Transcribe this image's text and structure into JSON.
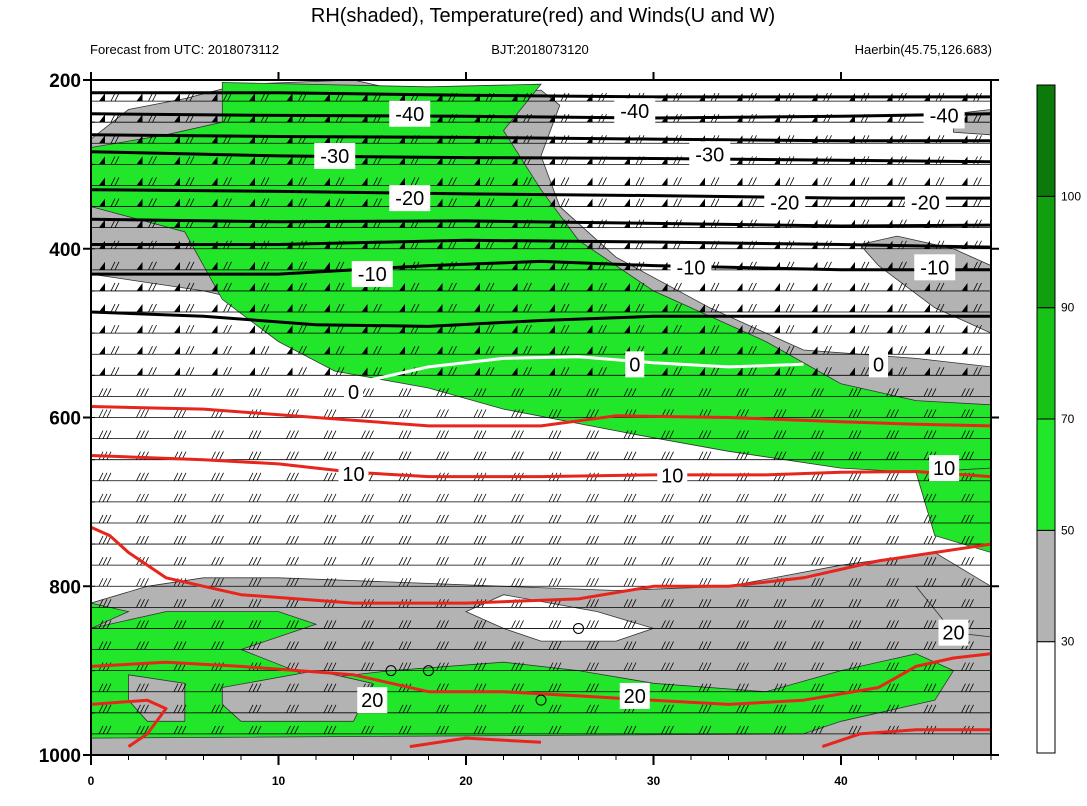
{
  "chart_data": {
    "type": "contour",
    "title": "RH(shaded), Temperature(red) and Winds(U and W)",
    "subtitle_left": "Forecast from UTC: 2018073112",
    "subtitle_center": "BJT:2018073120",
    "subtitle_right": "Haerbin(45.75,126.683)",
    "xlim": [
      0,
      48
    ],
    "ylim": [
      200,
      1000
    ],
    "y_reversed": true,
    "x_ticks": [
      0,
      10,
      20,
      30,
      40
    ],
    "y_ticks": [
      200,
      400,
      600,
      800,
      1000
    ],
    "wind_levels": [
      225,
      250,
      275,
      300,
      325,
      350,
      375,
      400,
      425,
      450,
      475,
      500,
      525,
      550,
      575,
      600,
      625,
      650,
      675,
      700,
      725,
      750,
      775,
      800,
      825,
      850,
      875,
      900,
      925,
      950,
      975
    ],
    "wind_times": [
      0,
      2,
      4,
      6,
      8,
      10,
      12,
      14,
      16,
      18,
      20,
      22,
      24,
      26,
      28,
      30,
      32,
      34,
      36,
      38,
      40,
      42,
      44,
      46
    ],
    "colorbar": {
      "levels": [
        30,
        50,
        70,
        90,
        100
      ],
      "colors": [
        "#ffffff",
        "#b3b3b3",
        "#22e62a",
        "#17c317",
        "#0f9f0f",
        "#0b7a0b"
      ]
    },
    "rh_regions": [
      {
        "level": 30,
        "color": "#b3b3b3",
        "points": [
          [
            0,
            270
          ],
          [
            2,
            235
          ],
          [
            5,
            222
          ],
          [
            8,
            205
          ],
          [
            14,
            200
          ],
          [
            18,
            220
          ],
          [
            24,
            212
          ],
          [
            25,
            230
          ],
          [
            24,
            290
          ],
          [
            25,
            350
          ],
          [
            28,
            410
          ],
          [
            33,
            470
          ],
          [
            38,
            520
          ],
          [
            44,
            530
          ],
          [
            48,
            540
          ],
          [
            48,
            600
          ],
          [
            42,
            610
          ],
          [
            33,
            620
          ],
          [
            24,
            560
          ],
          [
            17,
            510
          ],
          [
            12,
            480
          ],
          [
            6,
            450
          ],
          [
            0,
            430
          ]
        ]
      },
      {
        "level": 30,
        "color": "#b3b3b3",
        "points": [
          [
            41,
            395
          ],
          [
            43,
            385
          ],
          [
            46,
            400
          ],
          [
            48,
            420
          ],
          [
            48,
            500
          ],
          [
            45,
            470
          ],
          [
            42,
            420
          ]
        ]
      },
      {
        "level": 30,
        "color": "#b3b3b3",
        "points": [
          [
            46,
            240
          ],
          [
            48,
            235
          ],
          [
            48,
            265
          ],
          [
            46,
            262
          ]
        ]
      },
      {
        "level": 50,
        "color": "#22e62a",
        "points": [
          [
            7,
            203
          ],
          [
            18,
            208
          ],
          [
            24,
            205
          ],
          [
            22,
            260
          ],
          [
            24,
            330
          ],
          [
            26,
            390
          ],
          [
            30,
            450
          ],
          [
            36,
            510
          ],
          [
            40,
            560
          ],
          [
            44,
            580
          ],
          [
            48,
            585
          ],
          [
            48,
            660
          ],
          [
            44,
            665
          ],
          [
            40,
            660
          ],
          [
            34,
            640
          ],
          [
            29,
            620
          ],
          [
            22,
            590
          ],
          [
            18,
            565
          ],
          [
            13,
            545
          ],
          [
            10,
            510
          ],
          [
            7,
            460
          ],
          [
            5,
            380
          ],
          [
            0,
            350
          ],
          [
            0,
            280
          ],
          [
            4,
            265
          ],
          [
            7,
            250
          ]
        ]
      },
      {
        "level": 50,
        "color": "#22e62a",
        "points": [
          [
            44,
            665
          ],
          [
            48,
            660
          ],
          [
            48,
            760
          ],
          [
            45,
            740
          ]
        ]
      },
      {
        "level": 30,
        "color": "#b3b3b3",
        "points": [
          [
            0,
            820
          ],
          [
            3,
            800
          ],
          [
            6,
            790
          ],
          [
            10,
            790
          ],
          [
            16,
            795
          ],
          [
            22,
            800
          ],
          [
            28,
            805
          ],
          [
            34,
            800
          ],
          [
            40,
            775
          ],
          [
            45,
            760
          ],
          [
            48,
            800
          ],
          [
            48,
            1000
          ],
          [
            0,
            1000
          ]
        ]
      },
      {
        "level": 30,
        "color": "#b3b3b3",
        "points": [
          [
            44,
            800
          ],
          [
            48,
            800
          ],
          [
            48,
            860
          ],
          [
            46,
            855
          ]
        ]
      },
      {
        "level": 50,
        "color": "#22e62a",
        "points": [
          [
            0,
            850
          ],
          [
            4,
            830
          ],
          [
            10,
            830
          ],
          [
            12,
            845
          ],
          [
            8,
            875
          ],
          [
            12,
            910
          ],
          [
            16,
            900
          ],
          [
            22,
            890
          ],
          [
            26,
            900
          ],
          [
            30,
            915
          ],
          [
            36,
            925
          ],
          [
            40,
            900
          ],
          [
            44,
            880
          ],
          [
            46,
            900
          ],
          [
            45,
            935
          ],
          [
            40,
            960
          ],
          [
            38,
            975
          ],
          [
            0,
            980
          ]
        ]
      },
      {
        "level": 50,
        "color": "#22e62a",
        "points": [
          [
            0,
            850
          ],
          [
            2,
            830
          ],
          [
            0,
            820
          ]
        ]
      },
      {
        "level": 30,
        "color": "#ffffff",
        "points": [
          [
            22,
            810
          ],
          [
            27,
            830
          ],
          [
            30,
            850
          ],
          [
            28,
            865
          ],
          [
            24,
            865
          ],
          [
            22,
            850
          ],
          [
            20,
            830
          ]
        ]
      }
    ],
    "rh_islands": [
      {
        "color": "#b3b3b3",
        "points": [
          [
            2,
            905
          ],
          [
            5,
            915
          ],
          [
            5,
            960
          ],
          [
            3,
            960
          ],
          [
            2,
            935
          ]
        ]
      },
      {
        "color": "#b3b3b3",
        "points": [
          [
            7,
            920
          ],
          [
            12,
            900
          ],
          [
            15,
            915
          ],
          [
            14,
            960
          ],
          [
            8,
            960
          ],
          [
            7,
            940
          ]
        ]
      }
    ],
    "temperature_red": [
      {
        "label": "10",
        "points": [
          [
            0,
            645
          ],
          [
            6,
            650
          ],
          [
            10,
            655
          ],
          [
            14,
            665
          ],
          [
            18,
            670
          ],
          [
            24,
            670
          ],
          [
            30,
            668
          ],
          [
            36,
            668
          ],
          [
            40,
            665
          ],
          [
            44,
            664
          ],
          [
            48,
            670
          ]
        ]
      },
      {
        "label": "",
        "points": [
          [
            0,
            587
          ],
          [
            6,
            590
          ],
          [
            12,
            600
          ],
          [
            18,
            610
          ],
          [
            24,
            610
          ],
          [
            28,
            598
          ],
          [
            34,
            600
          ],
          [
            40,
            605
          ],
          [
            44,
            608
          ],
          [
            48,
            610
          ]
        ]
      },
      {
        "label": "",
        "points": [
          [
            0,
            730
          ],
          [
            1,
            740
          ],
          [
            2,
            760
          ],
          [
            4,
            790
          ],
          [
            8,
            810
          ],
          [
            14,
            820
          ],
          [
            20,
            820
          ],
          [
            26,
            815
          ],
          [
            30,
            800
          ],
          [
            34,
            800
          ],
          [
            38,
            790
          ],
          [
            42,
            770
          ],
          [
            48,
            750
          ]
        ]
      },
      {
        "label": "20",
        "points": [
          [
            0,
            895
          ],
          [
            4,
            890
          ],
          [
            8,
            895
          ],
          [
            14,
            905
          ],
          [
            18,
            925
          ],
          [
            22,
            925
          ],
          [
            26,
            930
          ],
          [
            30,
            935
          ],
          [
            34,
            940
          ],
          [
            38,
            935
          ],
          [
            42,
            920
          ],
          [
            44,
            895
          ],
          [
            46,
            885
          ],
          [
            48,
            880
          ]
        ]
      },
      {
        "label": "",
        "points": [
          [
            0,
            940
          ],
          [
            3,
            935
          ],
          [
            4,
            945
          ],
          [
            3,
            975
          ],
          [
            2,
            990
          ]
        ]
      },
      {
        "label": "",
        "points": [
          [
            17,
            990
          ],
          [
            20,
            980
          ],
          [
            24,
            985
          ]
        ]
      },
      {
        "label": "",
        "points": [
          [
            39,
            990
          ],
          [
            41,
            975
          ],
          [
            44,
            970
          ],
          [
            48,
            970
          ]
        ]
      }
    ],
    "temperature_black": [
      {
        "label": "-40",
        "points": [
          [
            0,
            215
          ],
          [
            10,
            215
          ],
          [
            20,
            218
          ],
          [
            30,
            220
          ],
          [
            40,
            220
          ],
          [
            48,
            220
          ]
        ]
      },
      {
        "label": "",
        "points": [
          [
            0,
            240
          ],
          [
            10,
            242
          ],
          [
            20,
            243
          ],
          [
            30,
            245
          ],
          [
            40,
            243
          ],
          [
            48,
            240
          ]
        ]
      },
      {
        "label": "-30",
        "points": [
          [
            0,
            265
          ],
          [
            10,
            267
          ],
          [
            20,
            268
          ],
          [
            30,
            270
          ],
          [
            40,
            272
          ],
          [
            48,
            272
          ]
        ]
      },
      {
        "label": "",
        "points": [
          [
            0,
            285
          ],
          [
            10,
            290
          ],
          [
            20,
            292
          ],
          [
            30,
            293
          ],
          [
            40,
            295
          ],
          [
            48,
            297
          ]
        ]
      },
      {
        "label": "-20",
        "points": [
          [
            0,
            330
          ],
          [
            10,
            332
          ],
          [
            20,
            335
          ],
          [
            30,
            337
          ],
          [
            40,
            340
          ],
          [
            48,
            340
          ]
        ]
      },
      {
        "label": "",
        "points": [
          [
            0,
            365
          ],
          [
            10,
            368
          ],
          [
            20,
            367
          ],
          [
            30,
            370
          ],
          [
            40,
            373
          ],
          [
            48,
            372
          ]
        ]
      },
      {
        "label": "-10",
        "points": [
          [
            0,
            395
          ],
          [
            10,
            395
          ],
          [
            20,
            390
          ],
          [
            30,
            392
          ],
          [
            40,
            395
          ],
          [
            48,
            398
          ]
        ]
      },
      {
        "label": "",
        "points": [
          [
            0,
            430
          ],
          [
            10,
            430
          ],
          [
            18,
            420
          ],
          [
            24,
            415
          ],
          [
            30,
            420
          ],
          [
            40,
            425
          ],
          [
            48,
            425
          ]
        ]
      },
      {
        "label": "",
        "points": [
          [
            0,
            475
          ],
          [
            6,
            480
          ],
          [
            12,
            490
          ],
          [
            18,
            492
          ],
          [
            24,
            485
          ],
          [
            30,
            480
          ],
          [
            40,
            480
          ],
          [
            48,
            480
          ]
        ]
      }
    ],
    "temperature_zero": {
      "label": "0",
      "points": [
        [
          15,
          555
        ],
        [
          18,
          540
        ],
        [
          22,
          530
        ],
        [
          26,
          528
        ],
        [
          30,
          535
        ],
        [
          34,
          540
        ],
        [
          38,
          537
        ]
      ]
    },
    "contour_labels": [
      {
        "text": "-40",
        "x": 17,
        "y": 240
      },
      {
        "text": "-40",
        "x": 29,
        "y": 237
      },
      {
        "text": "-40",
        "x": 45.5,
        "y": 242
      },
      {
        "text": "-30",
        "x": 13,
        "y": 290
      },
      {
        "text": "-30",
        "x": 33,
        "y": 288
      },
      {
        "text": "-20",
        "x": 17,
        "y": 340
      },
      {
        "text": "-20",
        "x": 37,
        "y": 345
      },
      {
        "text": "-20",
        "x": 44.5,
        "y": 345
      },
      {
        "text": "-10",
        "x": 15,
        "y": 430
      },
      {
        "text": "-10",
        "x": 32,
        "y": 422
      },
      {
        "text": "-10",
        "x": 45,
        "y": 422
      },
      {
        "text": "0",
        "x": 14,
        "y": 570
      },
      {
        "text": "0",
        "x": 29,
        "y": 537
      },
      {
        "text": "0",
        "x": 42,
        "y": 537
      },
      {
        "text": "10",
        "x": 14,
        "y": 667
      },
      {
        "text": "10",
        "x": 31,
        "y": 669
      },
      {
        "text": "10",
        "x": 45.5,
        "y": 660
      },
      {
        "text": "20",
        "x": 15,
        "y": 935
      },
      {
        "text": "20",
        "x": 29,
        "y": 930
      },
      {
        "text": "20",
        "x": 46,
        "y": 855
      }
    ],
    "markers": [
      {
        "x": 26,
        "y": 850
      },
      {
        "x": 16,
        "y": 900
      },
      {
        "x": 18,
        "y": 900
      },
      {
        "x": 24,
        "y": 935
      }
    ]
  }
}
